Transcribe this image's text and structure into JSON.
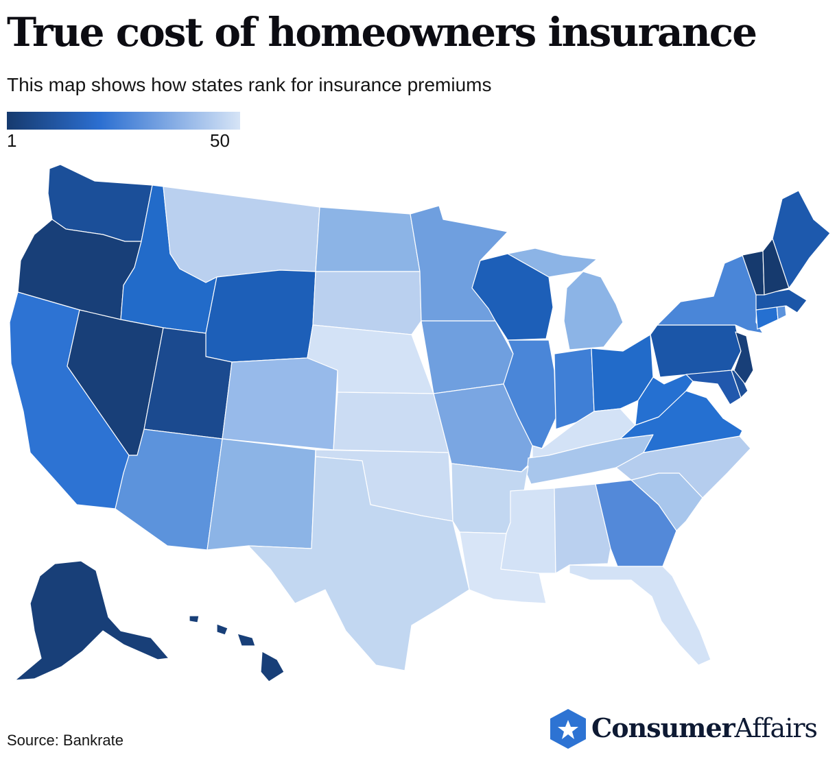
{
  "title": "True cost of homeowners insurance",
  "subtitle": "This map shows how states rank for insurance premiums",
  "legend": {
    "min_label": "1",
    "max_label": "50",
    "color_dark": "#163a6e",
    "color_mid": "#2c6fd1",
    "color_light": "#d6e4f6"
  },
  "colors": {
    "dark": "#183f78",
    "mid_dark": "#1d59ad",
    "mid": "#2d73d3",
    "mid_light": "#5c93dc",
    "light_mid": "#8cb4e6",
    "light": "#b9d0ef",
    "pale": "#cfdff4",
    "border": "#ffffff"
  },
  "source": "Source: Bankrate",
  "brand": {
    "name_bold": "Consumer",
    "name_light": "Affairs",
    "icon": "star-badge-icon"
  }
}
